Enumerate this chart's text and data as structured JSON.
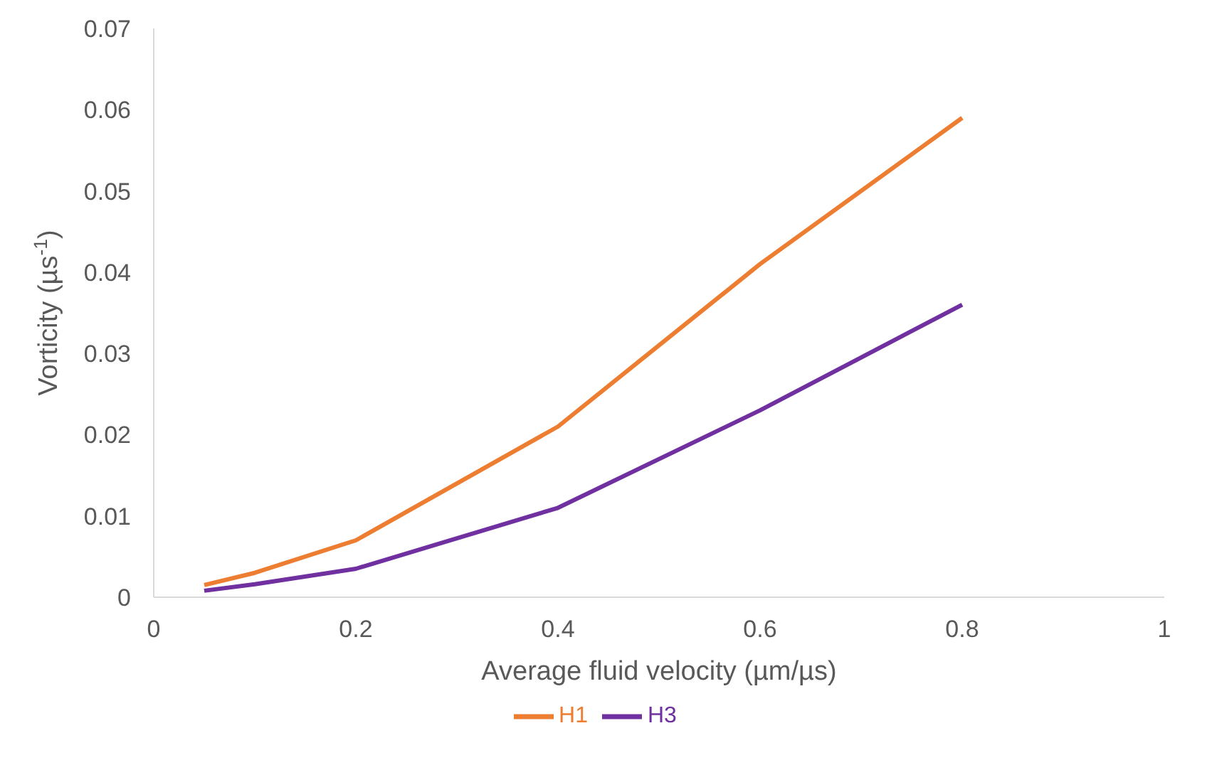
{
  "chart_data": {
    "type": "line",
    "xlabel": "Average fluid velocity (µm/µs)",
    "ylabel": "Vorticity (µs$^{-1}$)",
    "x": [
      0.05,
      0.1,
      0.2,
      0.4,
      0.6,
      0.8
    ],
    "series": [
      {
        "name": "H1",
        "color": "#ed7d31",
        "values": [
          0.0015,
          0.003,
          0.007,
          0.021,
          0.041,
          0.059
        ]
      },
      {
        "name": "H3",
        "color": "#7030a0",
        "values": [
          0.0008,
          0.0016,
          0.0035,
          0.011,
          0.023,
          0.036
        ]
      }
    ],
    "xlim": [
      0,
      1
    ],
    "xticks": [
      0,
      0.2,
      0.4,
      0.6,
      0.8,
      1
    ],
    "ylim": [
      0,
      0.07
    ],
    "yticks": [
      0,
      0.01,
      0.02,
      0.03,
      0.04,
      0.05,
      0.06,
      0.07
    ],
    "grid": false,
    "legend": "bottom",
    "marker": "none",
    "line_style": "solid"
  }
}
